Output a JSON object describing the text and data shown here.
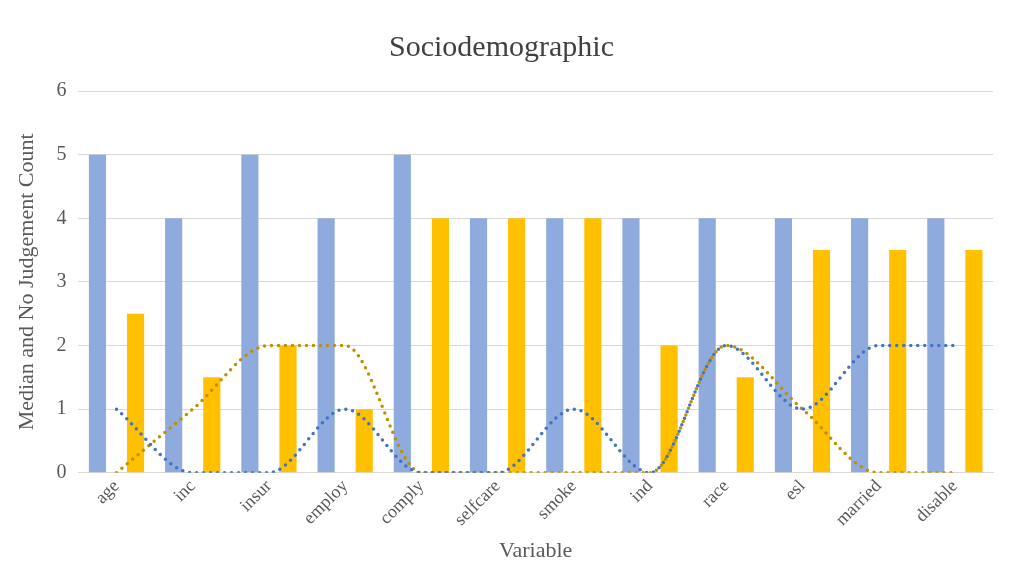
{
  "chart_data": {
    "type": "bar",
    "title": "Sociodemographic",
    "xlabel": "Variable",
    "ylabel": "Median and No Judgement Count",
    "categories": [
      "age",
      "inc",
      "insur",
      "employ",
      "comply",
      "selfcare",
      "smoke",
      "ind",
      "race",
      "esl",
      "married",
      "disable"
    ],
    "series": [
      {
        "color": "#8faadc",
        "values": [
          5,
          4,
          5,
          4,
          5,
          4,
          4,
          4,
          4,
          4,
          4,
          4
        ]
      },
      {
        "color": "#ffc000",
        "values": [
          2.5,
          1.5,
          2,
          1,
          4,
          4,
          4,
          2,
          1.5,
          3.5,
          3.5,
          3.5
        ]
      },
      {
        "type": "line",
        "color": "#4472c4",
        "line_style": "dotted",
        "marker": "none",
        "values": [
          1,
          0,
          0,
          1,
          0,
          0,
          1,
          0,
          2,
          1,
          2,
          2
        ]
      },
      {
        "type": "line",
        "color": "#bf9000",
        "line_style": "dotted",
        "marker": "none",
        "values": [
          0,
          1,
          2,
          2,
          0,
          0,
          0,
          0,
          2,
          1,
          0,
          0
        ]
      }
    ],
    "ylim": [
      0,
      6
    ],
    "yticks": [
      0,
      1,
      2,
      3,
      4,
      5,
      6
    ],
    "grid": "y",
    "legend": false
  }
}
